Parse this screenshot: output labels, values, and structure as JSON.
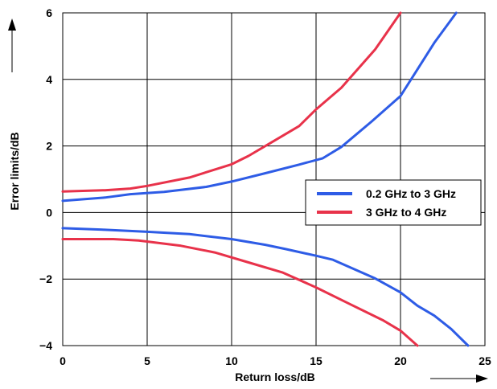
{
  "chart_data": {
    "type": "line",
    "xlabel": "Return loss/dB",
    "ylabel": "Error limits/dB",
    "xlim": [
      0,
      25
    ],
    "ylim": [
      -4,
      6
    ],
    "xticks": [
      0,
      5,
      10,
      15,
      20,
      25
    ],
    "yticks": [
      -4,
      -2,
      0,
      2,
      4,
      6
    ],
    "grid": true,
    "legend_position": "middle-right",
    "series": [
      {
        "name": "0.2 GHz to 3 GHz",
        "color": "#2e5ce6",
        "curves": [
          [
            [
              0,
              0.35
            ],
            [
              2.5,
              0.45
            ],
            [
              4,
              0.55
            ],
            [
              6,
              0.62
            ],
            [
              8.5,
              0.77
            ],
            [
              10,
              0.93
            ],
            [
              12,
              1.18
            ],
            [
              14,
              1.44
            ],
            [
              15.4,
              1.63
            ],
            [
              16.5,
              1.97
            ],
            [
              18.3,
              2.74
            ],
            [
              20,
              3.5
            ],
            [
              21,
              4.3
            ],
            [
              22,
              5.1
            ],
            [
              23.3,
              6.0
            ]
          ],
          [
            [
              0,
              -0.47
            ],
            [
              2.5,
              -0.52
            ],
            [
              5,
              -0.58
            ],
            [
              7.5,
              -0.65
            ],
            [
              10,
              -0.8
            ],
            [
              12,
              -0.97
            ],
            [
              13.2,
              -1.1
            ],
            [
              15,
              -1.3
            ],
            [
              16,
              -1.42
            ],
            [
              18.5,
              -1.98
            ],
            [
              20,
              -2.4
            ],
            [
              21,
              -2.8
            ],
            [
              22,
              -3.1
            ],
            [
              23,
              -3.5
            ],
            [
              24,
              -4.0
            ]
          ]
        ]
      },
      {
        "name": "3 GHz to 4 GHz",
        "color": "#e8324a",
        "curves": [
          [
            [
              0,
              0.63
            ],
            [
              2.5,
              0.67
            ],
            [
              4,
              0.72
            ],
            [
              5,
              0.8
            ],
            [
              7.5,
              1.05
            ],
            [
              10,
              1.45
            ],
            [
              11,
              1.7
            ],
            [
              12.5,
              2.15
            ],
            [
              14,
              2.6
            ],
            [
              15,
              3.1
            ],
            [
              16.5,
              3.75
            ],
            [
              18.5,
              4.9
            ],
            [
              20,
              6.0
            ]
          ],
          [
            [
              0,
              -0.8
            ],
            [
              3,
              -0.8
            ],
            [
              4.5,
              -0.84
            ],
            [
              7,
              -1.0
            ],
            [
              9,
              -1.2
            ],
            [
              11,
              -1.5
            ],
            [
              13,
              -1.8
            ],
            [
              15,
              -2.25
            ],
            [
              17,
              -2.75
            ],
            [
              19,
              -3.25
            ],
            [
              20,
              -3.55
            ],
            [
              21,
              -4.0
            ]
          ]
        ]
      }
    ]
  }
}
